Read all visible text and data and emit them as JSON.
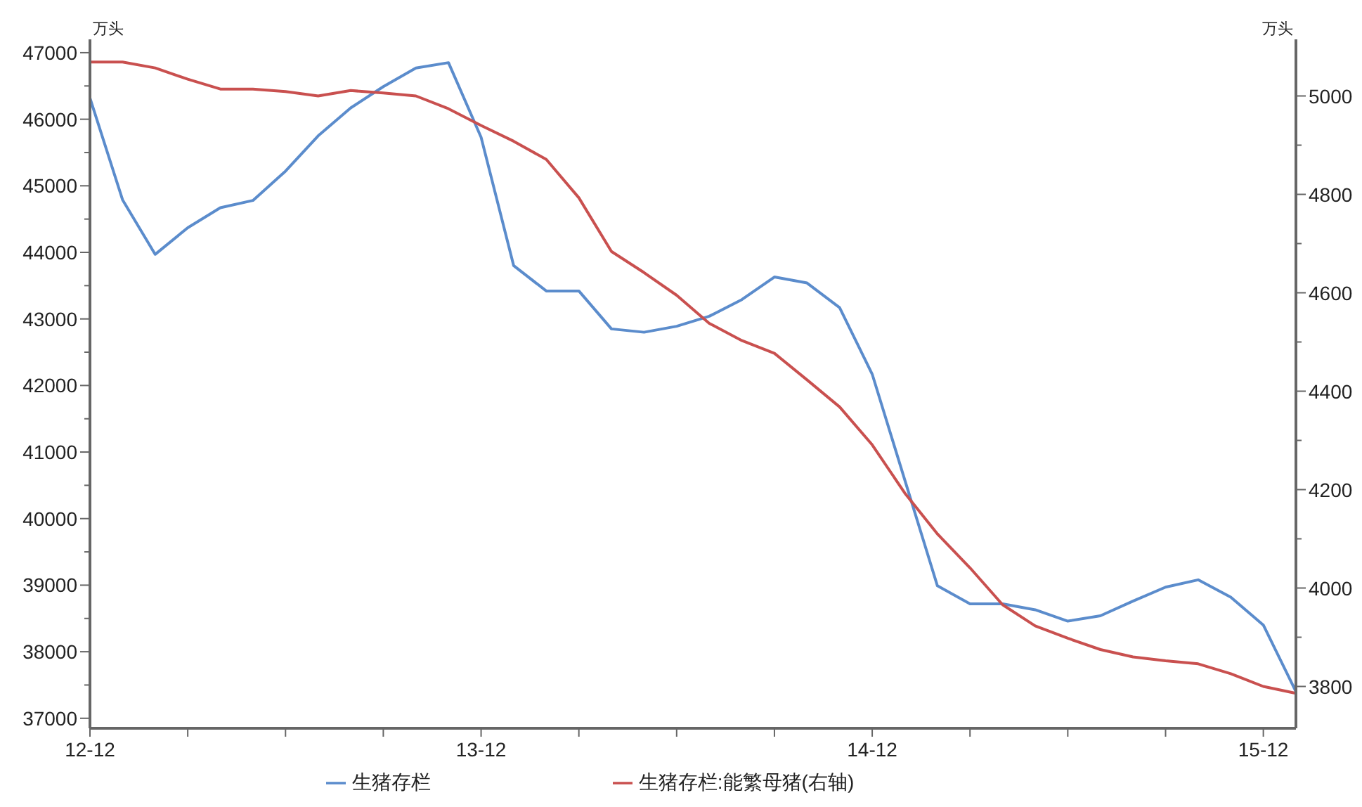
{
  "chart_data": {
    "type": "line",
    "ylabel": "万头",
    "y2label": "万头",
    "categories": [
      "12-12",
      null,
      null,
      null,
      null,
      null,
      null,
      null,
      null,
      null,
      null,
      null,
      "13-12",
      null,
      null,
      null,
      null,
      null,
      null,
      null,
      null,
      null,
      null,
      null,
      "14-12",
      null,
      null,
      null,
      null,
      null,
      null,
      null,
      null,
      null,
      null,
      null,
      "15-12",
      null
    ],
    "series": [
      {
        "name": "生猪存栏",
        "color": "#5b8ccc",
        "values": [
          46320,
          44790,
          43970,
          44370,
          44670,
          44780,
          45220,
          45750,
          46170,
          46490,
          46770,
          46850,
          45730,
          43800,
          43420,
          43420,
          42850,
          42800,
          42890,
          43040,
          43290,
          43630,
          43540,
          43170,
          42170,
          40580,
          38990,
          38720,
          38720,
          38630,
          38460,
          38540,
          38760,
          38970,
          39080,
          38820,
          38400,
          37400
        ]
      },
      {
        "name": "生猪存栏:能繁母猪(右轴)",
        "color": "#c9504f",
        "axis": "y2",
        "values": [
          5069,
          5069,
          5057,
          5034,
          5014,
          5014,
          5009,
          5000,
          5011,
          5006,
          5000,
          4974,
          4940,
          4908,
          4871,
          4793,
          4684,
          4641,
          4595,
          4538,
          4503,
          4477,
          4423,
          4368,
          4291,
          4193,
          4110,
          4041,
          3966,
          3923,
          3898,
          3875,
          3860,
          3852,
          3846,
          3826,
          3800,
          3786
        ]
      }
    ],
    "ylim": [
      36850,
      47200
    ],
    "yticks": [
      37000,
      {
        "value": 37500,
        "label": null
      },
      38000,
      {
        "value": 38500,
        "label": null
      },
      39000,
      {
        "value": 39500,
        "label": null
      },
      40000,
      {
        "value": 40500,
        "label": null
      },
      41000,
      {
        "value": 41500,
        "label": null
      },
      42000,
      {
        "value": 42500,
        "label": null
      },
      43000,
      {
        "value": 43500,
        "label": null
      },
      44000,
      {
        "value": 44500,
        "label": null
      },
      45000,
      {
        "value": 45500,
        "label": null
      },
      46000,
      {
        "value": 46500,
        "label": null
      },
      47000
    ],
    "y2lim": [
      3715,
      5115
    ],
    "y2ticks": [
      3800,
      {
        "value": 3900,
        "label": null
      },
      4000,
      {
        "value": 4100,
        "label": null
      },
      4200,
      {
        "value": 4300,
        "label": null
      },
      4400,
      {
        "value": 4500,
        "label": null
      },
      4600,
      {
        "value": 4700,
        "label": null
      },
      4800,
      {
        "value": 4900,
        "label": null
      },
      5000
    ],
    "grid": false,
    "legend": "bottom",
    "marker": "none",
    "line_style": "solid"
  }
}
